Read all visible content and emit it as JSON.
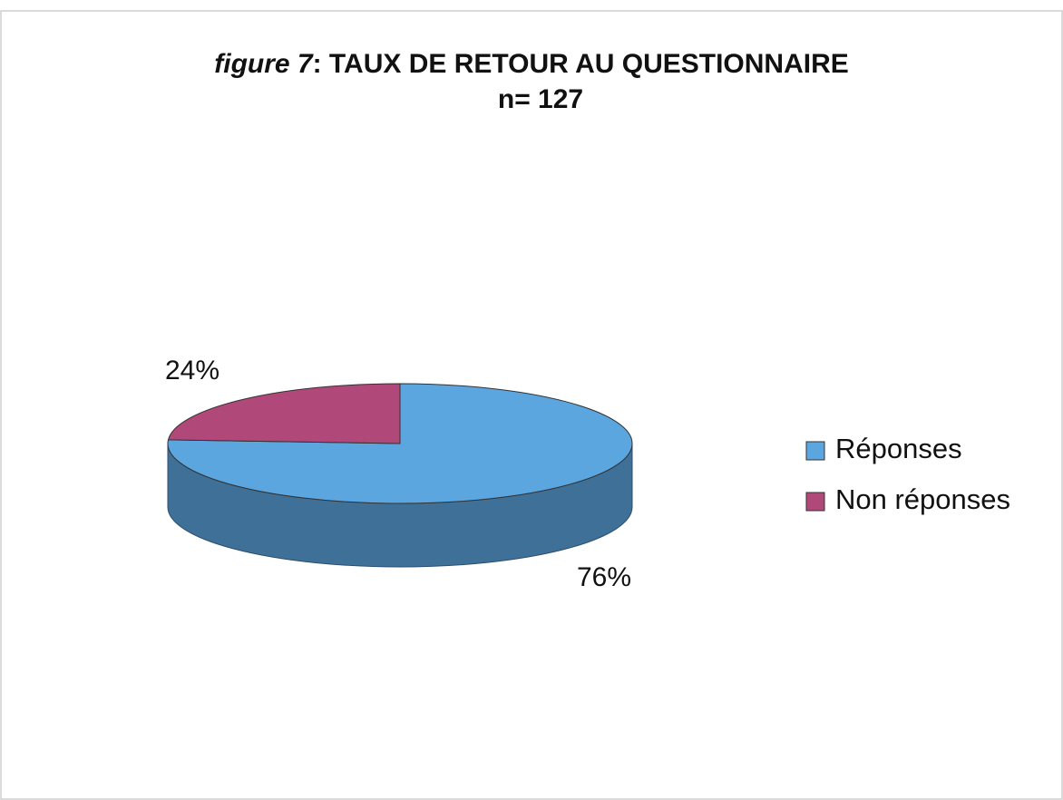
{
  "chart_data": {
    "type": "pie",
    "title": [
      "figure 7",
      ": TAUX DE RETOUR AU QUESTIONNAIRE"
    ],
    "subtitle": "n= 127",
    "categories": [
      "Réponses",
      "Non réponses"
    ],
    "values": [
      76,
      24
    ],
    "value_labels": [
      "76%",
      "24%"
    ],
    "colors": [
      "#5ca6e0",
      "#b0487a"
    ],
    "legend": "right"
  }
}
